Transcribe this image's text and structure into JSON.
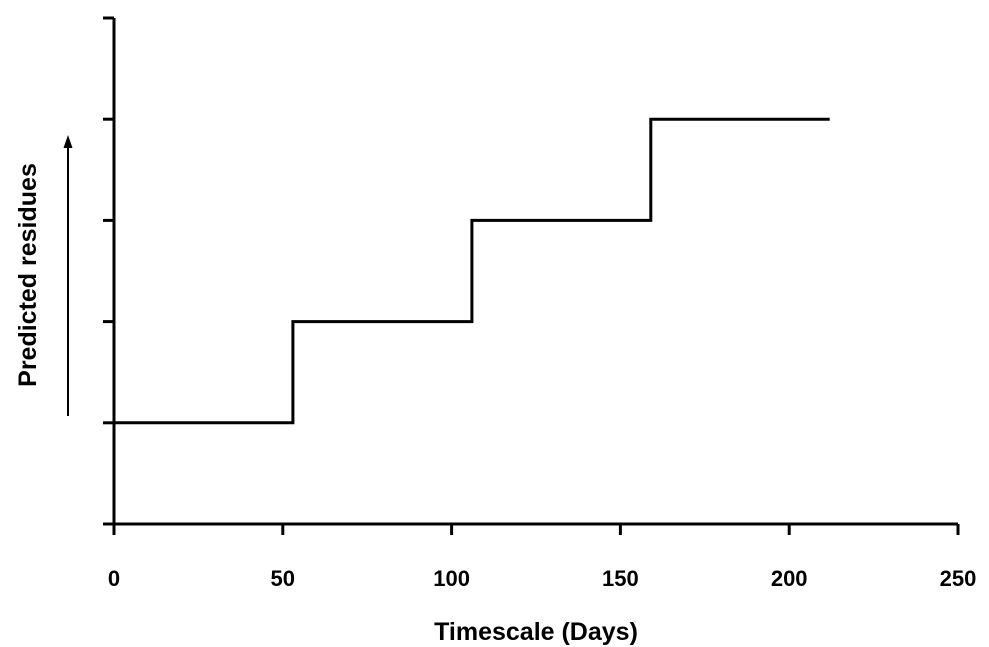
{
  "chart_data": {
    "type": "line",
    "xlabel": "Timescale (Days)",
    "ylabel": "Predicted residues",
    "xlim": [
      0,
      250
    ],
    "x_ticks": [
      0,
      50,
      100,
      150,
      200,
      250
    ],
    "x_tick_labels": [
      "0",
      "50",
      "100",
      "150",
      "200",
      "250"
    ],
    "ylim": [
      0,
      5
    ],
    "y_ticks": [
      0,
      1,
      2,
      3,
      4,
      5
    ],
    "y_tick_labels_shown": false,
    "ylabel_arrow": "up",
    "grid": false,
    "legend": "none",
    "line_color": "#000000",
    "series": [
      {
        "x": [
          0,
          53,
          53,
          106,
          106,
          159,
          159,
          212
        ],
        "y": [
          1,
          1,
          2,
          2,
          3,
          3,
          4,
          4
        ]
      }
    ]
  }
}
